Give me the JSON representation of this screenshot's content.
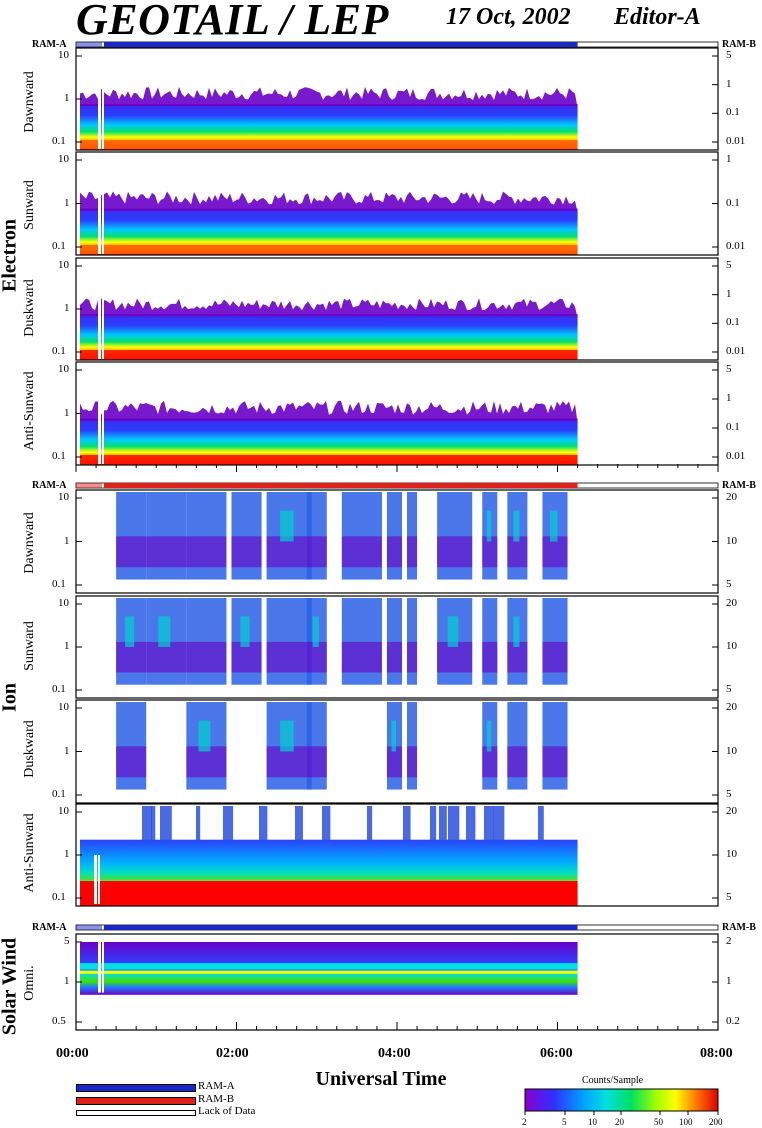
{
  "header": {
    "title": "GEOTAIL / LEP",
    "date": "17 Oct, 2002",
    "editor": "Editor-A"
  },
  "sections": {
    "electron": "Electron",
    "ion": "Ion",
    "solar_wind": "Solar Wind"
  },
  "status_labels": {
    "ram_a": "RAM-A",
    "ram_b": "RAM-B"
  },
  "colors": {
    "ram_a": "#1a28c8",
    "ram_b": "#e0201a",
    "lack_of_data": "#ffffff",
    "colorbar": [
      "#6a00c8",
      "#3c3cff",
      "#00a0ff",
      "#00e0e0",
      "#00e070",
      "#80ff00",
      "#ffff00",
      "#ff9000",
      "#ff2000",
      "#e00000"
    ]
  },
  "legend": {
    "ram_a": "RAM-A",
    "ram_b": "RAM-B",
    "lack": "Lack of Data"
  },
  "colorbar": {
    "title": "Counts/Sample",
    "ticks": [
      "2",
      "5",
      "10",
      "20",
      "50",
      "100",
      "200"
    ]
  },
  "chart_data": {
    "type": "heatmap",
    "xlabel": "Universal Time",
    "x_ticks": [
      "00:00",
      "02:00",
      "04:00",
      "06:00",
      "08:00"
    ],
    "x_range": [
      "00:00",
      "08:00"
    ],
    "data_end": "06:15",
    "panels": [
      {
        "group": "Electron",
        "name": "Dawnward",
        "left_ticks": [
          "10",
          "1",
          "0.1"
        ],
        "right_ticks": [
          "5",
          "1",
          "0.1",
          "0.01"
        ],
        "level": 0.35
      },
      {
        "group": "Electron",
        "name": "Sunward",
        "left_ticks": [
          "10",
          "1",
          "0.1"
        ],
        "right_ticks": [
          "1",
          "0.1",
          "0.01"
        ],
        "level": 0.35
      },
      {
        "group": "Electron",
        "name": "Duskward",
        "left_ticks": [
          "10",
          "1",
          "0.1"
        ],
        "right_ticks": [
          "5",
          "1",
          "0.1",
          "0.01"
        ],
        "level": 0.25
      },
      {
        "group": "Electron",
        "name": "Anti-Sunward",
        "left_ticks": [
          "10",
          "1",
          "0.1"
        ],
        "right_ticks": [
          "5",
          "1",
          "0.1",
          "0.01"
        ],
        "level": 0.4
      },
      {
        "group": "Ion",
        "name": "Dawnward",
        "left_ticks": [
          "10",
          "1",
          "0.1"
        ],
        "right_ticks": [
          "20",
          "10",
          "5"
        ],
        "level": 0.0
      },
      {
        "group": "Ion",
        "name": "Sunward",
        "left_ticks": [
          "10",
          "1",
          "0.1"
        ],
        "right_ticks": [
          "20",
          "10",
          "5"
        ],
        "level": 0.0
      },
      {
        "group": "Ion",
        "name": "Duskward",
        "left_ticks": [
          "10",
          "1",
          "0.1"
        ],
        "right_ticks": [
          "20",
          "10",
          "5"
        ],
        "level": 0.0
      },
      {
        "group": "Ion",
        "name": "Anti-Sunward",
        "left_ticks": [
          "10",
          "1",
          "0.1"
        ],
        "right_ticks": [
          "20",
          "10",
          "5"
        ],
        "level": 0.6
      },
      {
        "group": "Solar Wind",
        "name": "Omni.",
        "left_ticks": [
          "5",
          "1",
          "0.5"
        ],
        "right_ticks": [
          "2",
          "1",
          "0.2"
        ],
        "level": 0.5
      }
    ]
  }
}
